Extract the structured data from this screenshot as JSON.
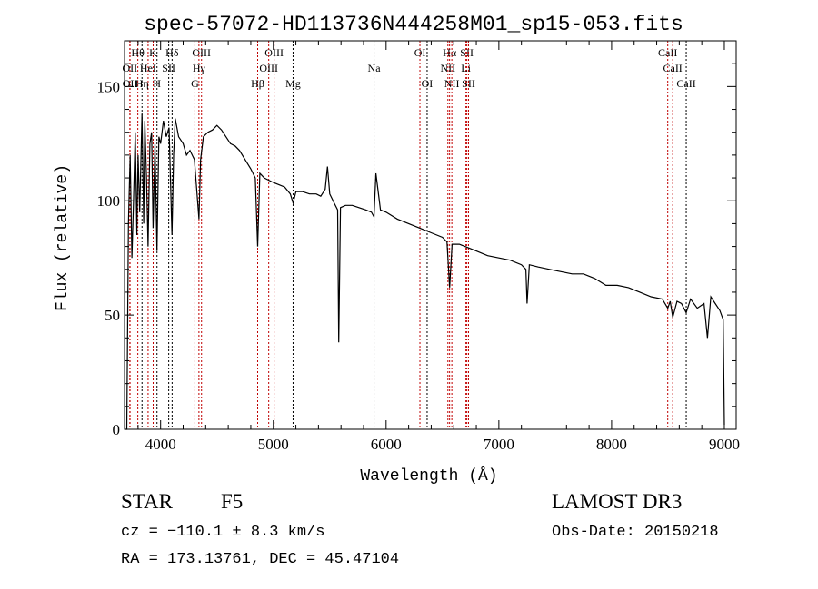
{
  "chart_data": {
    "type": "line",
    "title": "spec-57072-HD113736N444258M01_sp15-053.fits",
    "xlabel": "Wavelength (Å)",
    "ylabel": "Flux (relative)",
    "xlim": [
      3680,
      9105
    ],
    "ylim": [
      0,
      170
    ],
    "xticks": [
      4000,
      5000,
      6000,
      7000,
      8000,
      9000
    ],
    "yticks": [
      0,
      50,
      100,
      150
    ],
    "grid": false,
    "series": [
      {
        "name": "spectrum",
        "x": [
          3690,
          3700,
          3715,
          3730,
          3745,
          3760,
          3775,
          3790,
          3800,
          3815,
          3835,
          3850,
          3860,
          3875,
          3889,
          3905,
          3920,
          3933,
          3950,
          3968,
          3985,
          4000,
          4025,
          4050,
          4075,
          4101,
          4115,
          4130,
          4160,
          4200,
          4230,
          4260,
          4300,
          4320,
          4340,
          4355,
          4380,
          4420,
          4460,
          4500,
          4540,
          4580,
          4620,
          4660,
          4700,
          4750,
          4800,
          4840,
          4861,
          4880,
          4920,
          4960,
          5000,
          5050,
          5100,
          5150,
          5175,
          5200,
          5260,
          5320,
          5380,
          5420,
          5460,
          5480,
          5500,
          5540,
          5570,
          5580,
          5595,
          5640,
          5700,
          5760,
          5820,
          5870,
          5893,
          5910,
          5950,
          6000,
          6100,
          6200,
          6300,
          6400,
          6500,
          6540,
          6563,
          6585,
          6650,
          6700,
          6800,
          6900,
          7000,
          7100,
          7200,
          7240,
          7250,
          7270,
          7350,
          7450,
          7550,
          7650,
          7750,
          7850,
          7950,
          8050,
          8150,
          8250,
          8350,
          8450,
          8498,
          8520,
          8542,
          8580,
          8620,
          8662,
          8700,
          8760,
          8820,
          8850,
          8880,
          8920,
          8960,
          8990,
          9000
        ],
        "y": [
          0,
          0,
          90,
          120,
          75,
          100,
          130,
          85,
          120,
          95,
          138,
          90,
          135,
          110,
          80,
          125,
          130,
          88,
          125,
          78,
          128,
          125,
          135,
          128,
          132,
          85,
          120,
          136,
          128,
          125,
          120,
          122,
          118,
          105,
          92,
          118,
          128,
          130,
          131,
          133,
          131,
          128,
          125,
          124,
          122,
          118,
          114,
          110,
          80,
          112,
          110,
          109,
          108,
          107,
          106,
          103,
          99,
          104,
          104,
          103,
          103,
          102,
          105,
          115,
          103,
          99,
          96,
          38,
          97,
          98,
          98,
          97,
          96,
          95,
          93,
          112,
          96,
          95,
          92,
          90,
          88,
          86,
          84,
          82,
          62,
          81,
          81,
          80,
          78,
          76,
          75,
          74,
          72,
          70,
          55,
          72,
          71,
          70,
          69,
          68,
          68,
          66,
          63,
          63,
          62,
          60,
          58,
          57,
          53,
          56,
          49,
          56,
          55,
          51,
          57,
          53,
          55,
          40,
          58,
          55,
          52,
          48,
          2
        ]
      }
    ],
    "lines": [
      {
        "label": "Hθ",
        "wl": 3798,
        "row": 0,
        "color": "#c00000"
      },
      {
        "label": "K",
        "wl": 3934,
        "row": 0,
        "color": "#c00000"
      },
      {
        "label": "Hδ",
        "wl": 4102,
        "row": 0,
        "color": "#000000"
      },
      {
        "label": "OIII",
        "wl": 4363,
        "row": 0,
        "color": "#c00000"
      },
      {
        "label": "OIII",
        "wl": 5007,
        "row": 0,
        "color": "#c00000"
      },
      {
        "label": "OI",
        "wl": 6300,
        "row": 0,
        "color": "#c00000"
      },
      {
        "label": "Hα",
        "wl": 6563,
        "row": 0,
        "color": "#c00000"
      },
      {
        "label": "SII",
        "wl": 6716,
        "row": 0,
        "color": "#c00000"
      },
      {
        "label": "CaII",
        "wl": 8498,
        "row": 0,
        "color": "#c00000"
      },
      {
        "label": "OII",
        "wl": 3727,
        "row": 1,
        "color": "#c00000"
      },
      {
        "label": "HeI",
        "wl": 3889,
        "row": 1,
        "color": "#c00000"
      },
      {
        "label": "SII",
        "wl": 4072,
        "row": 1,
        "color": "#000000"
      },
      {
        "label": "Hγ",
        "wl": 4340,
        "row": 1,
        "color": "#c00000"
      },
      {
        "label": "OIII",
        "wl": 4959,
        "row": 1,
        "color": "#c00000"
      },
      {
        "label": "Na",
        "wl": 5893,
        "row": 1,
        "color": "#000000"
      },
      {
        "label": "NII",
        "wl": 6548,
        "row": 1,
        "color": "#c00000"
      },
      {
        "label": "Li",
        "wl": 6708,
        "row": 1,
        "color": "#c00000"
      },
      {
        "label": "CaII",
        "wl": 8542,
        "row": 1,
        "color": "#c00000"
      },
      {
        "label": "OII",
        "wl": 3729,
        "row": 2,
        "color": "#c00000"
      },
      {
        "label": "Hη",
        "wl": 3835,
        "row": 2,
        "color": "#000000"
      },
      {
        "label": "H",
        "wl": 3968,
        "row": 2,
        "color": "#000000"
      },
      {
        "label": "G",
        "wl": 4304,
        "row": 2,
        "color": "#c00000"
      },
      {
        "label": "Hβ",
        "wl": 4861,
        "row": 2,
        "color": "#c00000"
      },
      {
        "label": "Mg",
        "wl": 5175,
        "row": 2,
        "color": "#000000"
      },
      {
        "label": "OI",
        "wl": 6364,
        "row": 2,
        "color": "#000000"
      },
      {
        "label": "NII",
        "wl": 6583,
        "row": 2,
        "color": "#c00000"
      },
      {
        "label": "SII",
        "wl": 6731,
        "row": 2,
        "color": "#c00000"
      },
      {
        "label": "CaII",
        "wl": 8662,
        "row": 2,
        "color": "#000000"
      }
    ]
  },
  "info": {
    "class": "STAR",
    "subclass": "F5",
    "survey": "LAMOST DR3",
    "cz": "cz = −110.1 ± 8.3 km/s",
    "obs_date": "Obs-Date: 20150218",
    "radec": "RA = 173.13761, DEC =  45.47104"
  }
}
